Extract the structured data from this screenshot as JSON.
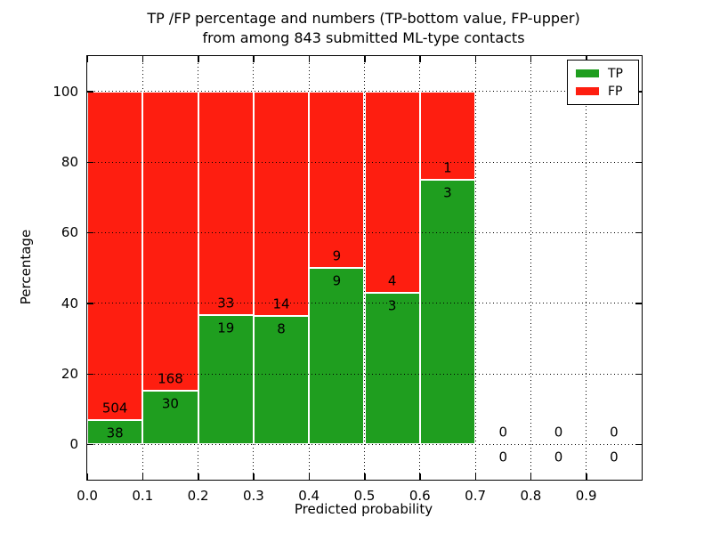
{
  "title": {
    "line1": "TP /FP percentage and numbers (TP-bottom value, FP-upper)",
    "line2": "from among 843 submitted ML-type contacts"
  },
  "axes": {
    "xlabel": "Predicted probability",
    "ylabel": "Percentage",
    "x_ticks": {
      "labels": [
        "0.0",
        "0.1",
        "0.2",
        "0.3",
        "0.4",
        "0.5",
        "0.6",
        "0.7",
        "0.8",
        "0.9"
      ],
      "values": [
        0.0,
        0.1,
        0.2,
        0.3,
        0.4,
        0.5,
        0.6,
        0.7,
        0.8,
        0.9
      ]
    },
    "y_ticks": {
      "labels": [
        "0",
        "20",
        "40",
        "60",
        "80",
        "100"
      ],
      "values": [
        0,
        20,
        40,
        60,
        80,
        100
      ]
    },
    "xlim": [
      0.0,
      1.0
    ],
    "ylim": [
      -10,
      110
    ],
    "grid": "dotted"
  },
  "legend": {
    "items": [
      {
        "label": "TP",
        "color": "#1f9e1f"
      },
      {
        "label": "FP",
        "color": "#fe1e10"
      }
    ]
  },
  "chart_data": {
    "type": "bar",
    "stacked": true,
    "normalized_to_percent": 100,
    "title": "TP /FP percentage and numbers (TP-bottom value, FP-upper) from among 843 submitted ML-type contacts",
    "xlabel": "Predicted probability",
    "ylabel": "Percentage",
    "bin_width": 0.1,
    "bin_starts": [
      0.0,
      0.1,
      0.2,
      0.3,
      0.4,
      0.5,
      0.6,
      0.7,
      0.8,
      0.9
    ],
    "series": [
      {
        "name": "TP",
        "color": "#1f9e1f",
        "counts": [
          38,
          30,
          19,
          8,
          9,
          3,
          3,
          0,
          0,
          0
        ]
      },
      {
        "name": "FP",
        "color": "#fe1e10",
        "counts": [
          504,
          168,
          33,
          14,
          9,
          4,
          1,
          0,
          0,
          0
        ]
      }
    ],
    "tp_percent_by_bin": [
      7.0,
      15.2,
      36.5,
      36.4,
      50.0,
      42.9,
      75.0,
      null,
      null,
      null
    ],
    "total_contacts": 843
  },
  "colors": {
    "tp": "#1f9e1f",
    "fp": "#fe1e10",
    "grid": "#000000",
    "bar_edge": "#ffffff",
    "background": "#ffffff"
  }
}
